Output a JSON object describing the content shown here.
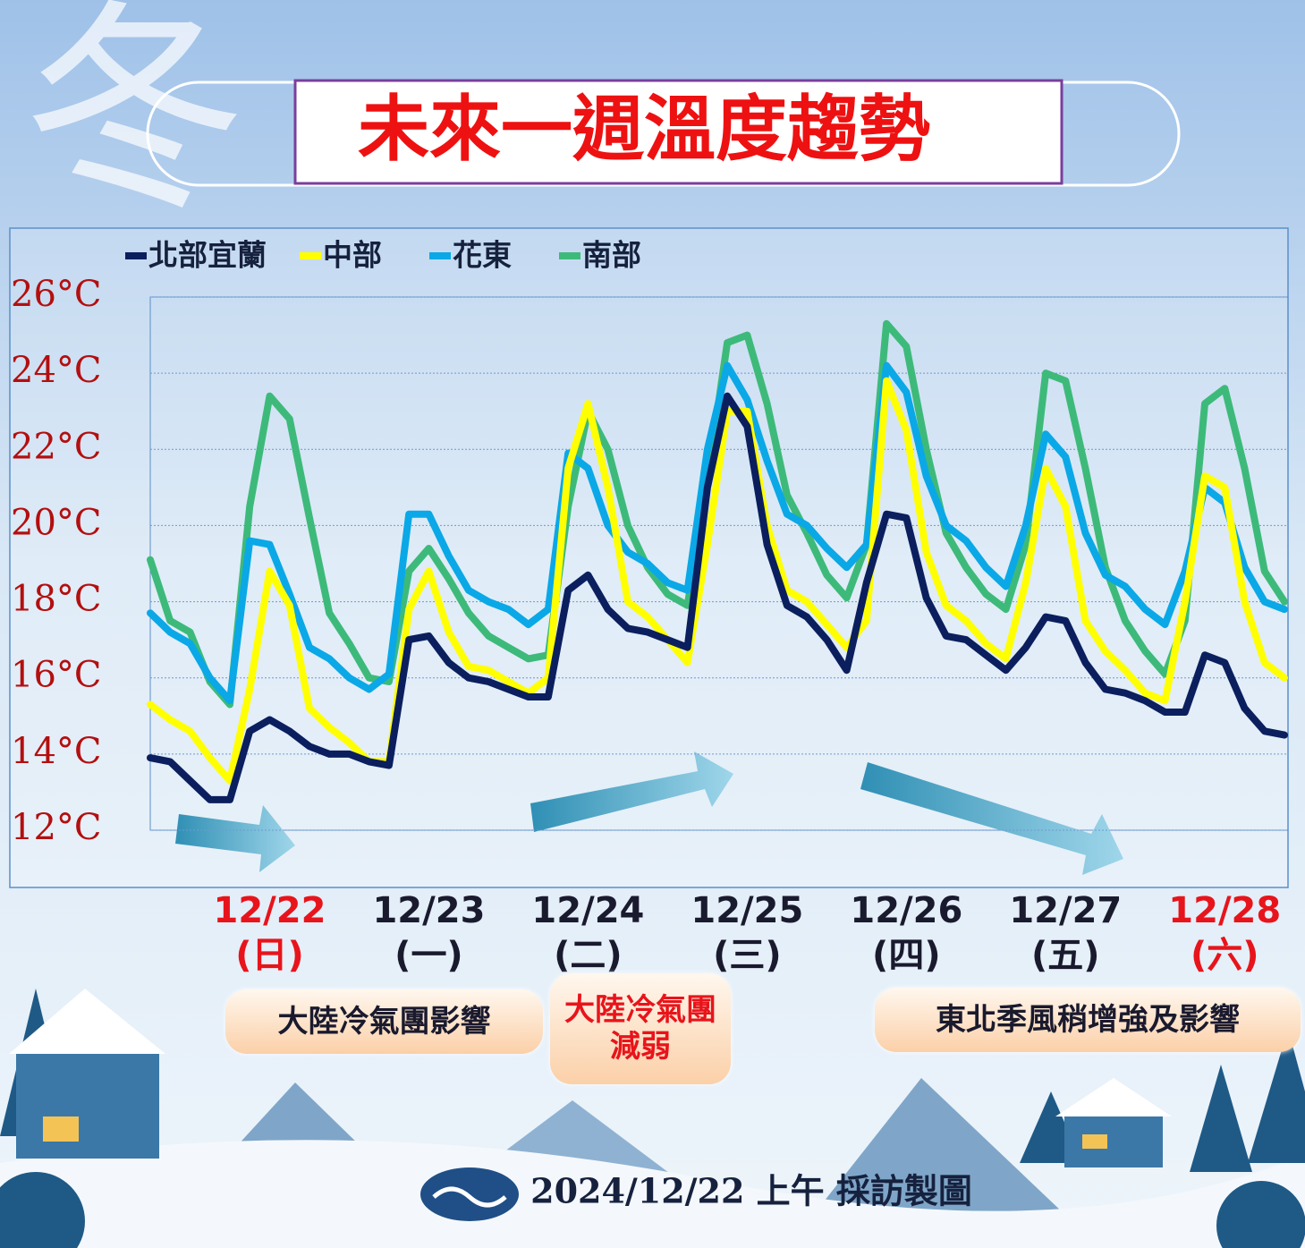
{
  "season_glyph": "冬",
  "chart_data": {
    "type": "line",
    "title": "未來一週溫度趨勢",
    "categories": [
      null,
      null,
      null,
      null,
      null,
      null,
      "12/22",
      null,
      null,
      null,
      null,
      null,
      null,
      null,
      "12/23",
      null,
      null,
      null,
      null,
      null,
      null,
      null,
      "12/24",
      null,
      null,
      null,
      null,
      null,
      null,
      null,
      "12/25",
      null,
      null,
      null,
      null,
      null,
      null,
      null,
      "12/26",
      null,
      null,
      null,
      null,
      null,
      null,
      null,
      "12/27",
      null,
      null,
      null,
      null,
      null,
      null,
      null,
      "12/28",
      null,
      null,
      null
    ],
    "category_sublabels": [
      null,
      null,
      null,
      null,
      null,
      null,
      "(日)",
      null,
      null,
      null,
      null,
      null,
      null,
      null,
      "(一)",
      null,
      null,
      null,
      null,
      null,
      null,
      null,
      "(二)",
      null,
      null,
      null,
      null,
      null,
      null,
      null,
      "(三)",
      null,
      null,
      null,
      null,
      null,
      null,
      null,
      "(四)",
      null,
      null,
      null,
      null,
      null,
      null,
      null,
      "(五)",
      null,
      null,
      null,
      null,
      null,
      null,
      null,
      "(六)",
      null,
      null,
      null
    ],
    "category_label_colors": [
      null,
      null,
      null,
      null,
      null,
      null,
      "#e8141b",
      null,
      null,
      null,
      null,
      null,
      null,
      null,
      "#1a1a2e",
      null,
      null,
      null,
      null,
      null,
      null,
      null,
      "#1a1a2e",
      null,
      null,
      null,
      null,
      null,
      null,
      null,
      "#1a1a2e",
      null,
      null,
      null,
      null,
      null,
      null,
      null,
      "#1a1a2e",
      null,
      null,
      null,
      null,
      null,
      null,
      null,
      "#1a1a2e",
      null,
      null,
      null,
      null,
      null,
      null,
      null,
      "#e8141b",
      null,
      null,
      null
    ],
    "series": [
      {
        "name": "北部宜蘭",
        "color": "#0b1f5e",
        "values": [
          13.9,
          13.8,
          13.3,
          12.8,
          12.8,
          14.6,
          14.9,
          14.6,
          14.2,
          14.0,
          14.0,
          13.8,
          13.7,
          17.0,
          17.1,
          16.4,
          16.0,
          15.9,
          15.7,
          15.5,
          15.5,
          18.3,
          18.7,
          17.8,
          17.3,
          17.2,
          17.0,
          16.8,
          21.0,
          23.4,
          22.6,
          19.5,
          17.9,
          17.6,
          17.0,
          16.2,
          18.5,
          20.3,
          20.2,
          18.1,
          17.1,
          17.0,
          16.6,
          16.2,
          16.8,
          17.6,
          17.5,
          16.4,
          15.7,
          15.6,
          15.4,
          15.1,
          15.1,
          16.6,
          16.4,
          15.2,
          14.6,
          14.5
        ]
      },
      {
        "name": "中部",
        "color": "#ffff00",
        "values": [
          15.3,
          14.9,
          14.6,
          13.9,
          13.3,
          15.7,
          18.8,
          17.9,
          15.2,
          14.7,
          14.3,
          13.8,
          13.8,
          17.8,
          18.8,
          17.2,
          16.3,
          16.2,
          15.9,
          15.6,
          16.0,
          21.5,
          23.2,
          21.0,
          18.0,
          17.6,
          17.0,
          16.4,
          19.5,
          23.0,
          23.0,
          20.0,
          18.3,
          18.0,
          17.4,
          16.8,
          17.5,
          23.8,
          22.5,
          19.3,
          17.9,
          17.5,
          16.9,
          16.5,
          18.5,
          21.5,
          20.5,
          17.5,
          16.7,
          16.2,
          15.6,
          15.4,
          18.0,
          21.3,
          21.0,
          18.0,
          16.4,
          16.0
        ]
      },
      {
        "name": "花東",
        "color": "#0aa8e6",
        "values": [
          17.7,
          17.2,
          16.9,
          16.0,
          15.4,
          19.6,
          19.5,
          18.2,
          16.8,
          16.5,
          16.0,
          15.7,
          16.1,
          20.3,
          20.3,
          19.2,
          18.3,
          18.0,
          17.8,
          17.4,
          17.8,
          21.9,
          21.5,
          20.0,
          19.3,
          19.0,
          18.5,
          18.3,
          22.0,
          24.2,
          23.3,
          21.7,
          20.3,
          20.0,
          19.4,
          18.9,
          19.5,
          24.2,
          23.5,
          21.3,
          20.0,
          19.6,
          18.9,
          18.4,
          20.0,
          22.4,
          21.8,
          19.8,
          18.7,
          18.4,
          17.8,
          17.4,
          18.8,
          21.0,
          20.6,
          18.9,
          18.0,
          17.8
        ]
      },
      {
        "name": "南部",
        "color": "#3dba7a",
        "values": [
          19.1,
          17.5,
          17.2,
          15.9,
          15.3,
          20.5,
          23.4,
          22.8,
          20.2,
          17.7,
          16.9,
          16.0,
          15.9,
          18.8,
          19.4,
          18.6,
          17.7,
          17.1,
          16.8,
          16.5,
          16.6,
          20.5,
          23.0,
          22.0,
          20.0,
          18.9,
          18.2,
          17.9,
          21.2,
          24.8,
          25.0,
          23.2,
          20.8,
          19.8,
          18.7,
          18.1,
          19.5,
          25.3,
          24.7,
          22.0,
          19.8,
          18.9,
          18.2,
          17.8,
          19.5,
          24.0,
          23.8,
          21.5,
          18.9,
          17.5,
          16.7,
          16.1,
          17.5,
          23.2,
          23.6,
          21.5,
          18.8,
          18.0
        ]
      }
    ],
    "ylim": [
      12,
      26
    ],
    "yticks": [
      {
        "value": 12,
        "label": "12°C"
      },
      {
        "value": 14,
        "label": "14°C"
      },
      {
        "value": 16,
        "label": "16°C"
      },
      {
        "value": 18,
        "label": "18°C"
      },
      {
        "value": 20,
        "label": "20°C"
      },
      {
        "value": 22,
        "label": "22°C"
      },
      {
        "value": 24,
        "label": "24°C"
      },
      {
        "value": 26,
        "label": "26°C"
      }
    ],
    "grid": true,
    "legend": "top-left",
    "annotations": [
      "大陸冷氣團影響",
      "大陸冷氣團減弱",
      "東北季風稍增強及影響"
    ],
    "annotation_colors": [
      "#1a1a2e",
      "#e8141b",
      "#1a1a2e"
    ]
  },
  "footer": "2024/12/22 上午 採訪製圖"
}
